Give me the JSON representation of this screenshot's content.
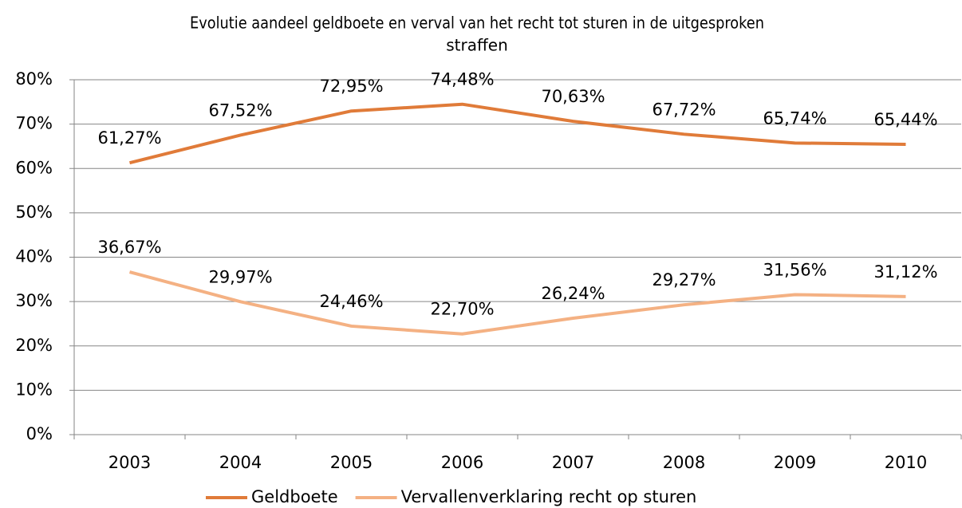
{
  "chart_data": {
    "type": "line",
    "title": [
      "Evolutie aandeel geldboete en verval van het recht tot sturen in de uitgesproken",
      "straffen"
    ],
    "categories": [
      "2003",
      "2004",
      "2005",
      "2006",
      "2007",
      "2008",
      "2009",
      "2010"
    ],
    "series": [
      {
        "name": "Geldboete",
        "color": "#e07b39",
        "values": [
          61.27,
          67.52,
          72.95,
          74.48,
          70.63,
          67.72,
          65.74,
          65.44
        ],
        "value_labels": [
          "61,27%",
          "67,52%",
          "72,95%",
          "74,48%",
          "70,63%",
          "67,72%",
          "65,74%",
          "65,44%"
        ]
      },
      {
        "name": "Vervallenverklaring recht op sturen",
        "color": "#f4b183",
        "values": [
          36.67,
          29.97,
          24.46,
          22.7,
          26.24,
          29.27,
          31.56,
          31.12
        ],
        "value_labels": [
          "36,67%",
          "29,97%",
          "24,46%",
          "22,70%",
          "26,24%",
          "29,27%",
          "31,56%",
          "31,12%"
        ]
      }
    ],
    "ylim": [
      0,
      80
    ],
    "yticks": [
      {
        "value": 0,
        "label": "0%"
      },
      {
        "value": 10,
        "label": "10%"
      },
      {
        "value": 20,
        "label": "20%"
      },
      {
        "value": 30,
        "label": "30%"
      },
      {
        "value": 40,
        "label": "40%"
      },
      {
        "value": 50,
        "label": "50%"
      },
      {
        "value": 60,
        "label": "60%"
      },
      {
        "value": 70,
        "label": "70%"
      },
      {
        "value": 80,
        "label": "80%"
      }
    ],
    "grid": true,
    "legend": "bottom"
  }
}
